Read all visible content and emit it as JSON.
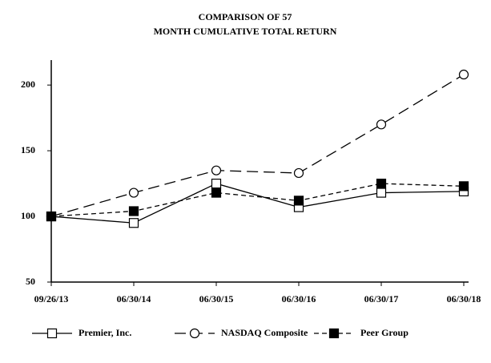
{
  "chart_data": {
    "type": "line",
    "title": [
      "COMPARISON OF 57",
      "MONTH CUMULATIVE TOTAL RETURN"
    ],
    "categories": [
      "09/26/13",
      "06/30/14",
      "06/30/15",
      "06/30/16",
      "06/30/17",
      "06/30/18"
    ],
    "series": [
      {
        "name": "Premier, Inc.",
        "color": "#000000",
        "dash": "solid",
        "marker": "open-square",
        "values": [
          100,
          95,
          125,
          107,
          118,
          119
        ]
      },
      {
        "name": "NASDAQ Composite",
        "color": "#000000",
        "dash": "long-dash",
        "marker": "open-circle",
        "values": [
          100,
          118,
          135,
          133,
          170,
          208
        ]
      },
      {
        "name": "Peer Group",
        "color": "#000000",
        "dash": "short-dash",
        "marker": "filled-square",
        "values": [
          100,
          104,
          118,
          112,
          125,
          123
        ]
      }
    ],
    "ylim": [
      50,
      219
    ],
    "yticks": [
      50,
      100,
      150,
      200
    ],
    "grid": false,
    "legend": "bottom"
  }
}
